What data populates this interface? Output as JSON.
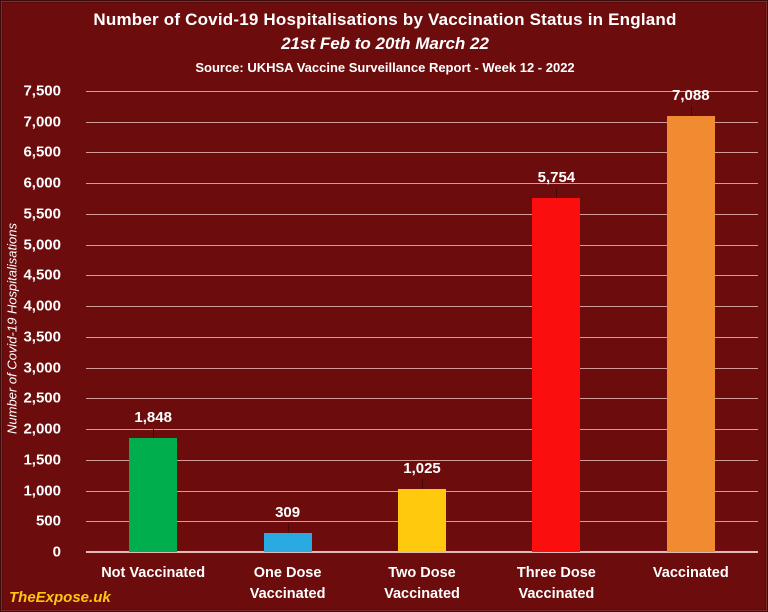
{
  "header": {
    "title": "Number of Covid-19 Hospitalisations by Vaccination Status in England",
    "subtitle": "21st Feb to 20th March 22",
    "source": "Source: UKHSA Vaccine Surveillance Report - Week 12 - 2022"
  },
  "watermark": "TheExpose.uk",
  "chart_data": {
    "type": "bar",
    "title": "Number of Covid-19 Hospitalisations by Vaccination Status in England",
    "subtitle": "21st Feb to 20th March 22",
    "source": "Source: UKHSA Vaccine Surveillance Report - Week 12 - 2022",
    "xlabel": "",
    "ylabel": "Number of Covid-19 Hospitalisations",
    "categories": [
      "Not Vaccinated",
      "One Dose Vaccinated",
      "Two Dose Vaccinated",
      "Three Dose Vaccinated",
      "Vaccinated"
    ],
    "values": [
      1848,
      309,
      1025,
      5754,
      7088
    ],
    "value_labels": [
      "1,848",
      "309",
      "1,025",
      "5,754",
      "7,088"
    ],
    "bar_colors": [
      "#00AE4E",
      "#29ABE2",
      "#FFC90E",
      "#FA0E0E",
      "#F18B31"
    ],
    "ylim": [
      0,
      7500
    ],
    "ytick_step": 500,
    "ytick_labels": [
      "0",
      "500",
      "1,000",
      "1,500",
      "2,000",
      "2,500",
      "3,000",
      "3,500",
      "4,000",
      "4,500",
      "5,000",
      "5,500",
      "6,000",
      "6,500",
      "7,000",
      "7,500"
    ],
    "grid": true,
    "legend": "none"
  },
  "colors": {
    "background": "#6C0C0C",
    "gridline": "#D49B9B",
    "axis_line": "#E6B8B8",
    "text": "#FFFFFF",
    "watermark_text": "#FFC613",
    "leader_line": "#450707"
  }
}
